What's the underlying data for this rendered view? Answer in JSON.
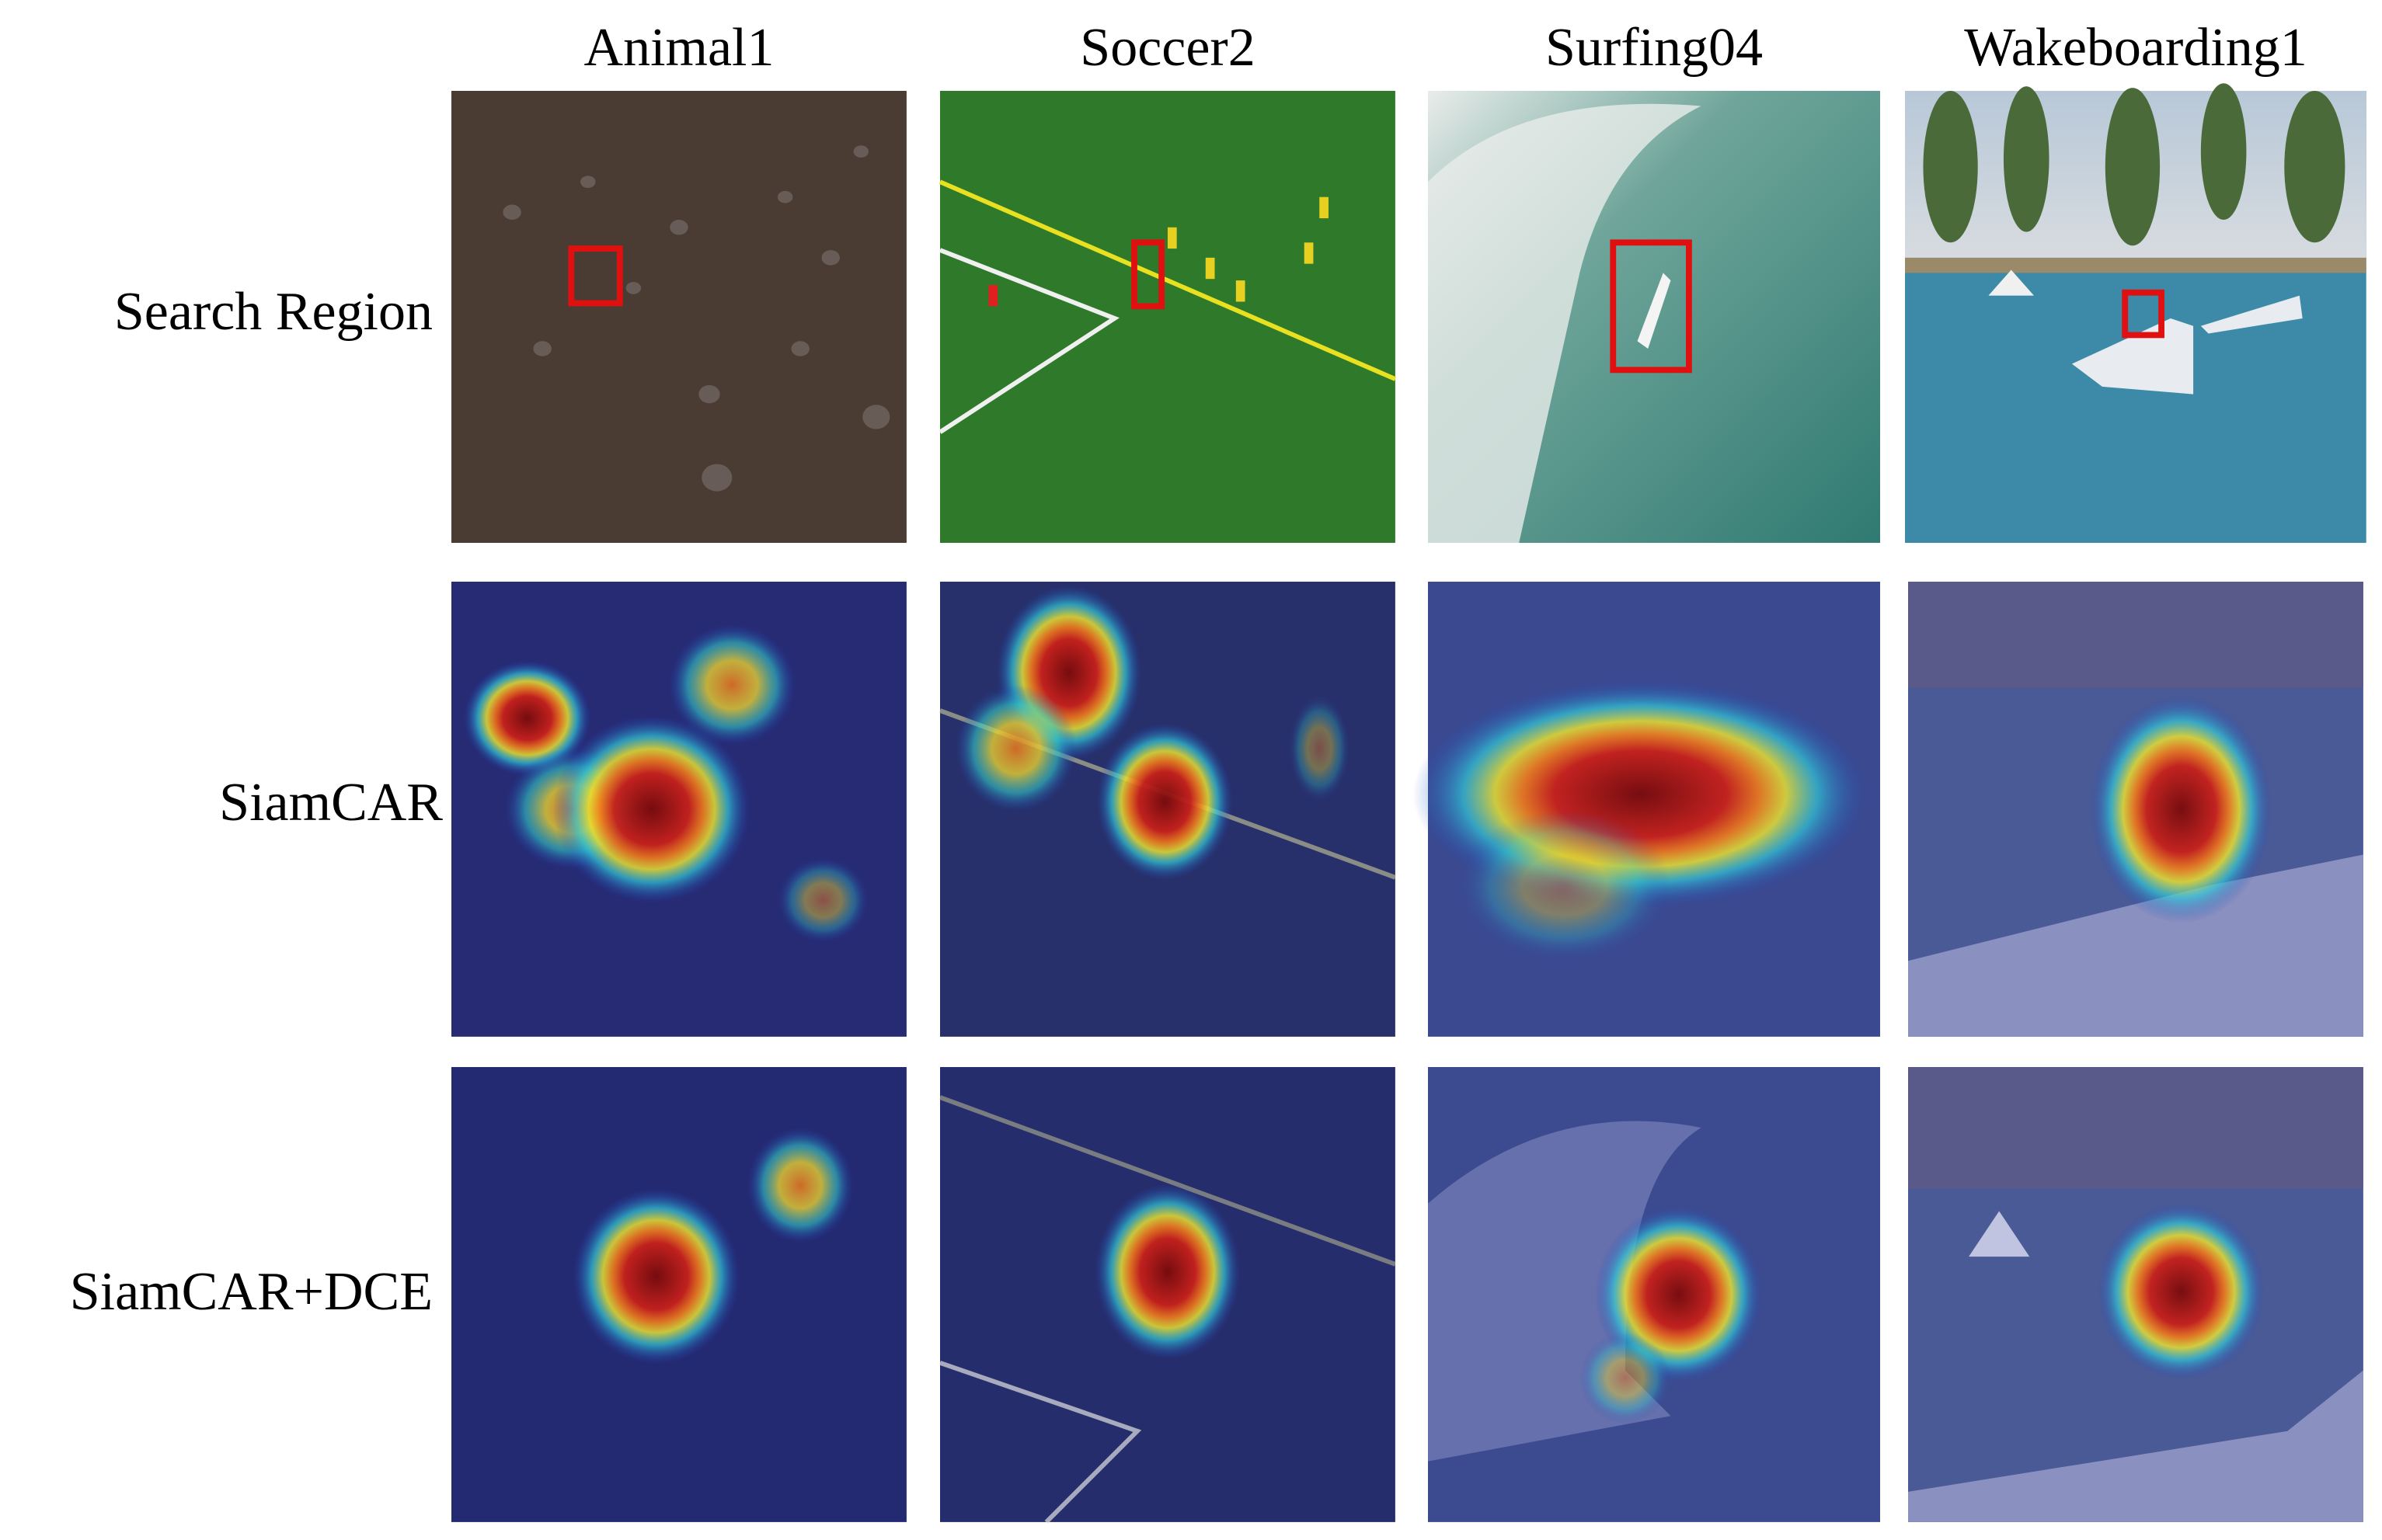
{
  "columns": [
    "Animal1",
    "Soccer2",
    "Surfing04",
    "Wakeboarding1"
  ],
  "rows": [
    "Search Region",
    "SiamCAR",
    "SiamCAR+DCE"
  ]
}
